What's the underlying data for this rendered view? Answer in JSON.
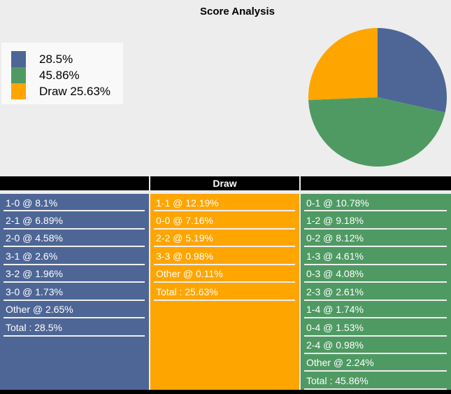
{
  "title": "Score Analysis",
  "legend": {
    "items": [
      {
        "label": "28.5%",
        "color": "#4E6696"
      },
      {
        "label": "45.86%",
        "color": "#4F9A63"
      },
      {
        "label": "Draw 25.63%",
        "color": "#FFA500"
      }
    ]
  },
  "chart_data": {
    "type": "pie",
    "title": "Score Analysis",
    "slices": [
      {
        "legend_label": "28.5%",
        "value": 28.5,
        "color": "#4E6696"
      },
      {
        "legend_label": "45.86%",
        "value": 45.86,
        "color": "#4F9A63"
      },
      {
        "legend_label": "Draw 25.63%",
        "value": 25.63,
        "color": "#FFA500"
      }
    ],
    "start_angle": "12 o'clock",
    "direction": "clockwise",
    "legend_position": "upper left"
  },
  "columns": [
    {
      "header": "",
      "color": "#4E6696",
      "rows": [
        "1-0 @ 8.1%",
        "2-1 @ 6.89%",
        "2-0 @ 4.58%",
        "3-1 @ 2.6%",
        "3-2 @ 1.96%",
        "3-0 @ 1.73%",
        "Other @ 2.65%",
        "Total : 28.5%"
      ]
    },
    {
      "header": "Draw",
      "color": "#FFA500",
      "rows": [
        "1-1 @ 12.19%",
        "0-0 @ 7.16%",
        "2-2 @ 5.19%",
        "3-3 @ 0.98%",
        "Other @ 0.11%",
        "Total : 25.63%"
      ]
    },
    {
      "header": "",
      "color": "#4F9A63",
      "rows": [
        "0-1 @ 10.78%",
        "1-2 @ 9.18%",
        "0-2 @ 8.12%",
        "1-3 @ 4.61%",
        "0-3 @ 4.08%",
        "2-3 @ 2.61%",
        "1-4 @ 1.74%",
        "0-4 @ 1.53%",
        "2-4 @ 0.98%",
        "Other @ 2.24%",
        "Total : 45.86%"
      ]
    }
  ],
  "colors": {
    "page_background": "#EDEDED",
    "legend_background": "#F9F9F9",
    "header_bar": "#000000",
    "row_text": "#FFFFFF",
    "row_divider": "#EFEFEF",
    "bottom_bar": "#000000"
  }
}
